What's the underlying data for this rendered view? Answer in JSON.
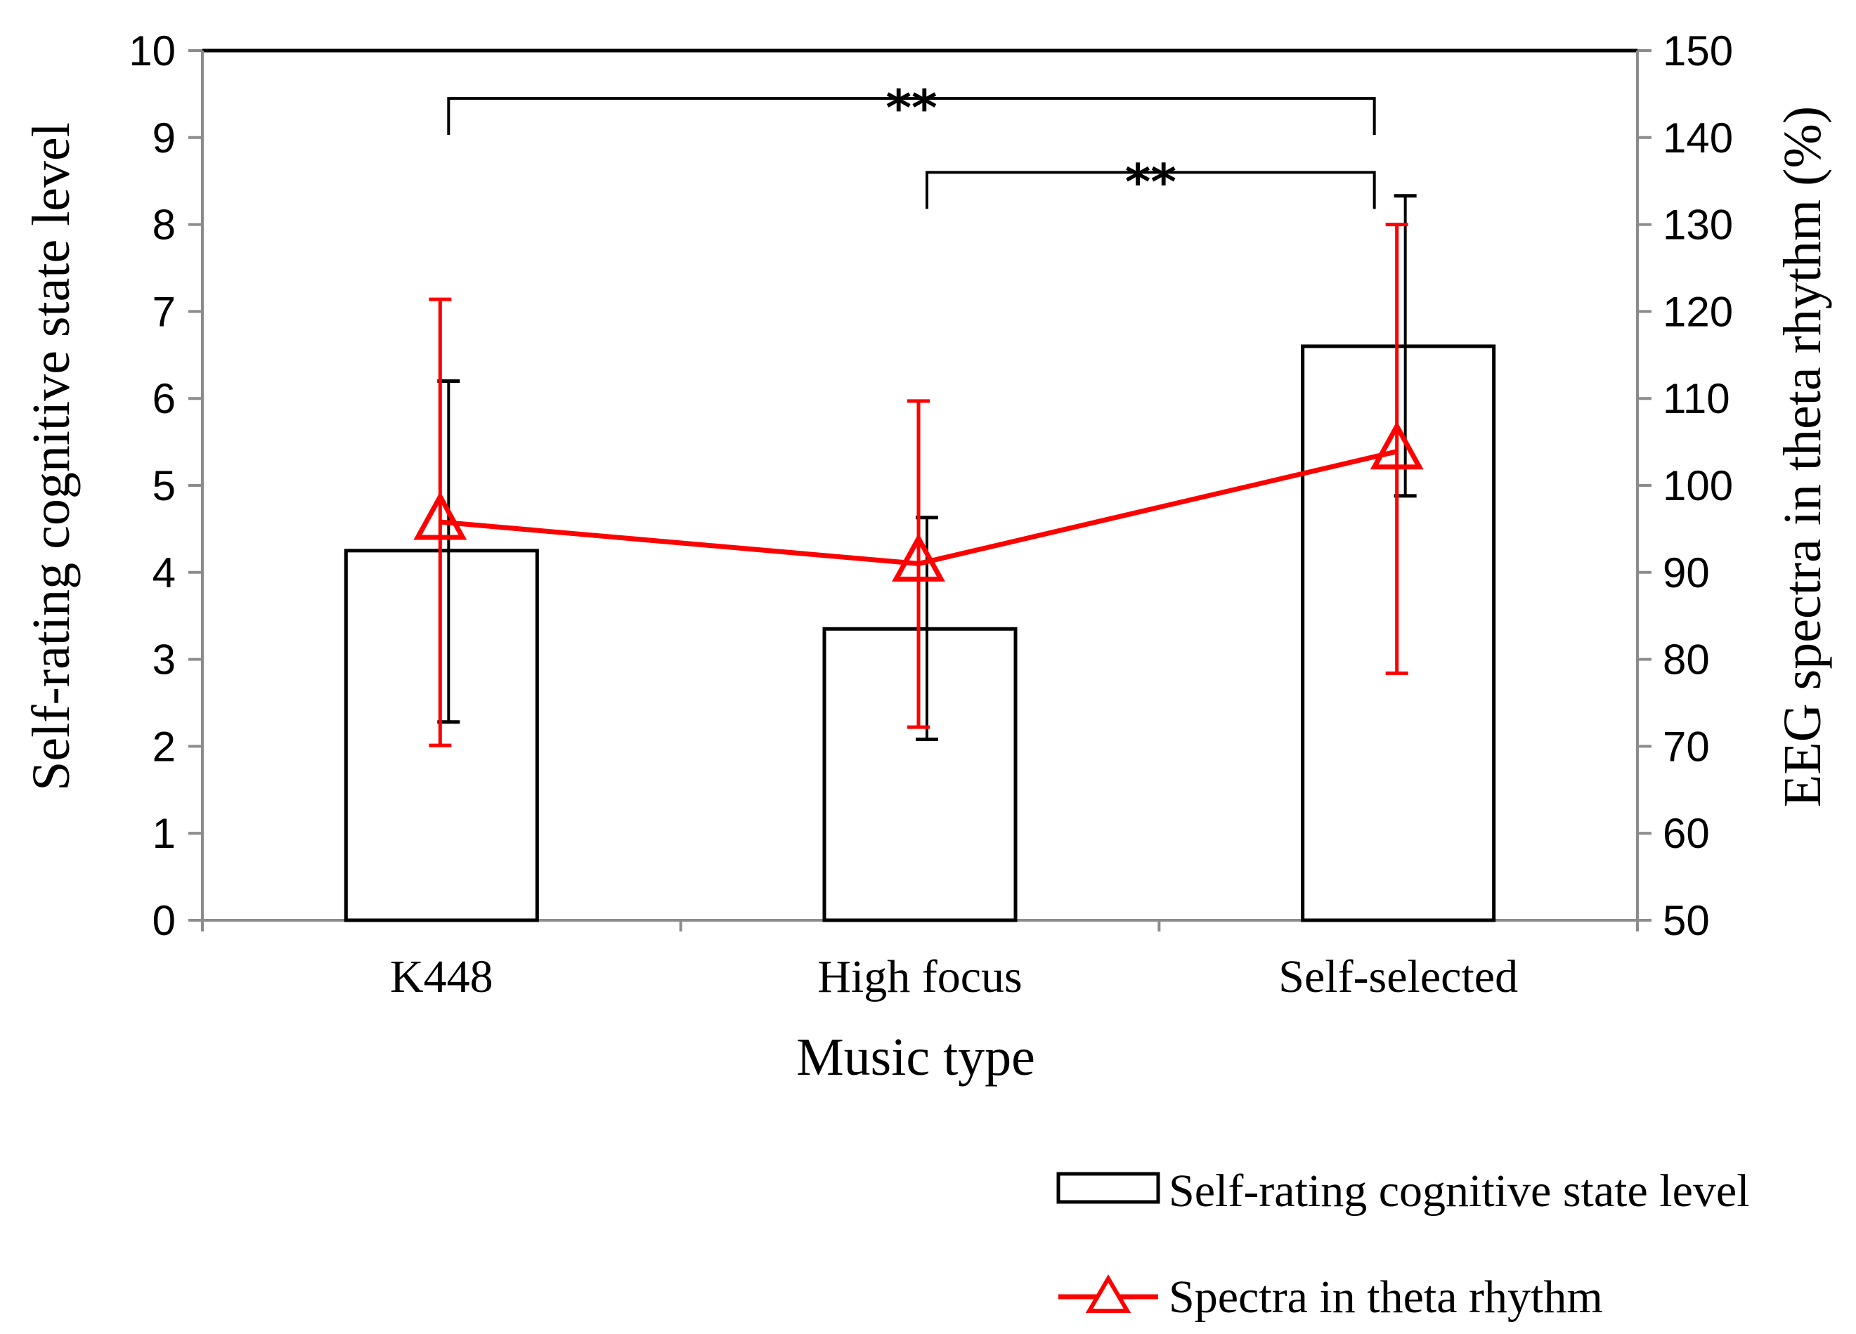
{
  "chart_data": {
    "type": "bar",
    "categories": [
      "K448",
      "High focus",
      "Self-selected"
    ],
    "xlabel": "Music type",
    "ylabel": "Self-rating cognitive state level",
    "y2label": "EEG spectra in theta rhythm (%)",
    "ylim": [
      0,
      10
    ],
    "y2lim": [
      50,
      150
    ],
    "yticks": [
      0,
      1,
      2,
      3,
      4,
      5,
      6,
      7,
      8,
      9,
      10
    ],
    "y2ticks": [
      50,
      60,
      70,
      80,
      90,
      100,
      110,
      120,
      130,
      140,
      150
    ],
    "grid": false,
    "legend_position": "bottom-right",
    "series": [
      {
        "name": "Self-rating cognitive state level",
        "type": "bar",
        "axis": "left",
        "values": [
          4.25,
          3.35,
          6.6
        ],
        "error_upper": [
          6.2,
          4.63,
          8.33
        ],
        "error_lower": [
          2.28,
          2.08,
          4.88
        ],
        "color": "#000000"
      },
      {
        "name": "Spectra in theta rhythm",
        "type": "line",
        "axis": "right",
        "marker": "triangle",
        "values": [
          95.8,
          91.0,
          103.9
        ],
        "error_upper": [
          121.4,
          109.7,
          130.0
        ],
        "error_lower": [
          70.1,
          72.2,
          78.4
        ],
        "color": "#ff0000"
      }
    ],
    "significance": [
      {
        "from": "K448",
        "to": "Self-selected",
        "label": "**",
        "y": 9.45
      },
      {
        "from": "High focus",
        "to": "Self-selected",
        "label": "**",
        "y": 8.6
      }
    ]
  }
}
